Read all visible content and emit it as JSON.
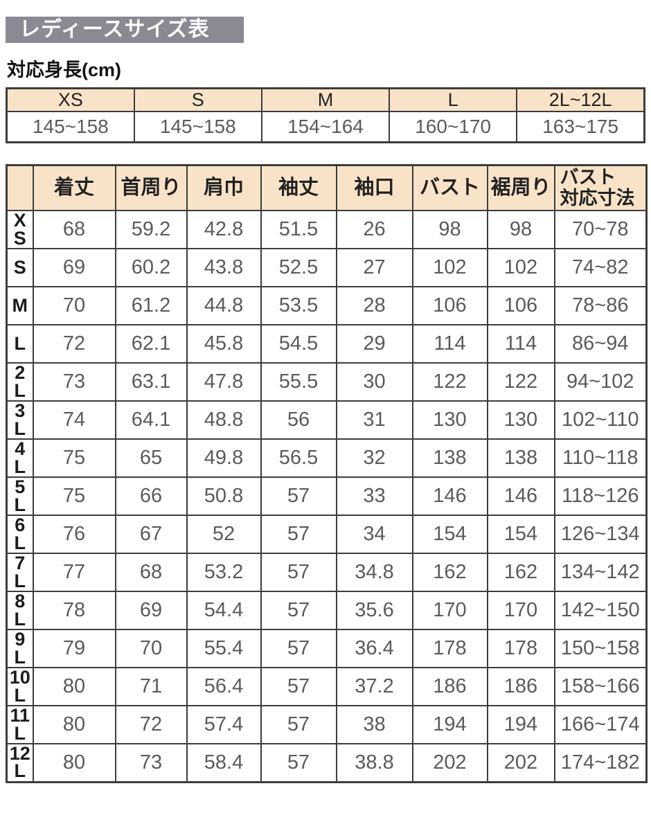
{
  "page": {
    "title": "レディースサイズ表",
    "subtitle": "対応身長(cm)"
  },
  "colors": {
    "page_bg": "#ffffff",
    "title_bg": "#8b8993",
    "title_text": "#ffffff",
    "header_bg": "#f8e3c8",
    "border": "#3c3c3c",
    "data_text": "#5a5a5a",
    "label_text": "#1c1c1c"
  },
  "height_table": {
    "columns": [
      "XS",
      "S",
      "M",
      "L",
      "2L~12L"
    ],
    "values": [
      "145~158",
      "145~158",
      "154~164",
      "160~170",
      "163~175"
    ]
  },
  "size_table": {
    "columns": [
      "着丈",
      "首周り",
      "肩巾",
      "袖丈",
      "袖口",
      "バスト",
      "裾周り",
      "バスト\n対応寸法"
    ],
    "rows": [
      {
        "size": "XS",
        "values": [
          "68",
          "59.2",
          "42.8",
          "51.5",
          "26",
          "98",
          "98",
          "70~78"
        ]
      },
      {
        "size": "S",
        "values": [
          "69",
          "60.2",
          "43.8",
          "52.5",
          "27",
          "102",
          "102",
          "74~82"
        ]
      },
      {
        "size": "M",
        "values": [
          "70",
          "61.2",
          "44.8",
          "53.5",
          "28",
          "106",
          "106",
          "78~86"
        ]
      },
      {
        "size": "L",
        "values": [
          "72",
          "62.1",
          "45.8",
          "54.5",
          "29",
          "114",
          "114",
          "86~94"
        ]
      },
      {
        "size": "2L",
        "values": [
          "73",
          "63.1",
          "47.8",
          "55.5",
          "30",
          "122",
          "122",
          "94~102"
        ]
      },
      {
        "size": "3L",
        "values": [
          "74",
          "64.1",
          "48.8",
          "56",
          "31",
          "130",
          "130",
          "102~110"
        ]
      },
      {
        "size": "4L",
        "values": [
          "75",
          "65",
          "49.8",
          "56.5",
          "32",
          "138",
          "138",
          "110~118"
        ]
      },
      {
        "size": "5L",
        "values": [
          "75",
          "66",
          "50.8",
          "57",
          "33",
          "146",
          "146",
          "118~126"
        ]
      },
      {
        "size": "6L",
        "values": [
          "76",
          "67",
          "52",
          "57",
          "34",
          "154",
          "154",
          "126~134"
        ]
      },
      {
        "size": "7L",
        "values": [
          "77",
          "68",
          "53.2",
          "57",
          "34.8",
          "162",
          "162",
          "134~142"
        ]
      },
      {
        "size": "8L",
        "values": [
          "78",
          "69",
          "54.4",
          "57",
          "35.6",
          "170",
          "170",
          "142~150"
        ]
      },
      {
        "size": "9L",
        "values": [
          "79",
          "70",
          "55.4",
          "57",
          "36.4",
          "178",
          "178",
          "150~158"
        ]
      },
      {
        "size": "10L",
        "values": [
          "80",
          "71",
          "56.4",
          "57",
          "37.2",
          "186",
          "186",
          "158~166"
        ]
      },
      {
        "size": "11L",
        "values": [
          "80",
          "72",
          "57.4",
          "57",
          "38",
          "194",
          "194",
          "166~174"
        ]
      },
      {
        "size": "12L",
        "values": [
          "80",
          "73",
          "58.4",
          "57",
          "38.8",
          "202",
          "202",
          "174~182"
        ]
      }
    ]
  }
}
